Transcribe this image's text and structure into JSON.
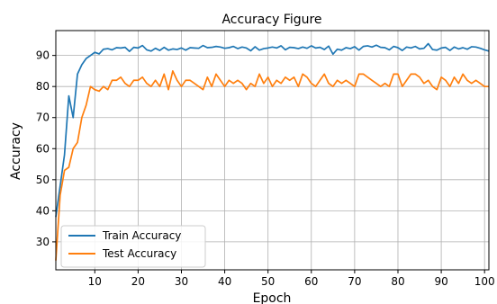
{
  "chart_data": {
    "type": "line",
    "title": "Accuracy Figure",
    "xlabel": "Epoch",
    "ylabel": "Accuracy",
    "xlim": [
      1,
      101
    ],
    "ylim": [
      21,
      98
    ],
    "x_ticks": [
      10,
      20,
      30,
      40,
      50,
      60,
      70,
      80,
      90,
      100
    ],
    "y_ticks": [
      30,
      40,
      50,
      60,
      70,
      80,
      90
    ],
    "grid": true,
    "legend_position": "lower-left",
    "x": [
      1,
      2,
      3,
      4,
      5,
      6,
      7,
      8,
      9,
      10,
      11,
      12,
      13,
      14,
      15,
      16,
      17,
      18,
      19,
      20,
      21,
      22,
      23,
      24,
      25,
      26,
      27,
      28,
      29,
      30,
      31,
      32,
      33,
      34,
      35,
      36,
      37,
      38,
      39,
      40,
      41,
      42,
      43,
      44,
      45,
      46,
      47,
      48,
      49,
      50,
      51,
      52,
      53,
      54,
      55,
      56,
      57,
      58,
      59,
      60,
      61,
      62,
      63,
      64,
      65,
      66,
      67,
      68,
      69,
      70,
      71,
      72,
      73,
      74,
      75,
      76,
      77,
      78,
      79,
      80,
      81,
      82,
      83,
      84,
      85,
      86,
      87,
      88,
      89,
      90,
      91,
      92,
      93,
      94,
      95,
      96,
      97,
      98,
      99,
      100,
      101
    ],
    "series": [
      {
        "name": "Train Accuracy",
        "color": "#1f77b4",
        "values": [
          38,
          48,
          58,
          77,
          70,
          84,
          87,
          89,
          90,
          91,
          90.5,
          92,
          92.2,
          91.8,
          92.5,
          92.4,
          92.6,
          91.3,
          92.6,
          92.4,
          93.2,
          91.8,
          91.4,
          92.3,
          91.6,
          92.6,
          91.7,
          92.1,
          91.9,
          92.4,
          91.7,
          92.5,
          92.4,
          92.3,
          93.2,
          92.5,
          92.6,
          92.9,
          92.7,
          92.3,
          92.5,
          92.9,
          92.2,
          92.7,
          92.4,
          91.5,
          92.8,
          91.7,
          92.2,
          92.4,
          92.7,
          92.4,
          93.1,
          91.8,
          92.6,
          92.5,
          92.2,
          92.7,
          92.3,
          93.1,
          92.4,
          92.6,
          91.9,
          93.0,
          90.4,
          92.0,
          91.7,
          92.5,
          92.2,
          92.8,
          91.7,
          92.9,
          93.1,
          92.7,
          93.3,
          92.6,
          92.5,
          91.8,
          92.9,
          92.5,
          91.6,
          92.7,
          92.4,
          92.9,
          92.1,
          92.3,
          93.8,
          91.9,
          91.7,
          92.4,
          92.6,
          91.6,
          92.7,
          92.1,
          92.5,
          92.0,
          92.8,
          92.7,
          92.3,
          91.8,
          91.4
        ]
      },
      {
        "name": "Test Accuracy",
        "color": "#ff7f0e",
        "values": [
          24,
          45,
          53,
          54,
          60,
          62,
          70,
          74,
          80,
          79,
          78.5,
          80,
          79,
          82,
          82,
          83,
          81,
          80,
          82,
          82,
          83,
          81,
          80,
          82,
          80,
          84,
          79,
          85,
          82,
          80,
          82,
          82,
          81,
          80,
          79,
          83,
          80,
          84,
          82,
          80,
          82,
          81,
          82,
          81,
          79,
          81,
          80,
          84,
          81,
          83,
          80,
          82,
          81,
          83,
          82,
          83,
          80,
          84,
          83,
          81,
          80,
          82,
          84,
          81,
          80,
          82,
          81,
          82,
          81,
          80,
          84,
          84,
          83,
          82,
          81,
          80,
          81,
          80,
          84,
          84,
          80,
          82,
          84,
          84,
          83,
          81,
          82,
          80,
          79,
          83,
          82,
          80,
          83,
          81,
          84,
          82,
          81,
          82,
          81,
          80,
          80
        ]
      }
    ]
  }
}
